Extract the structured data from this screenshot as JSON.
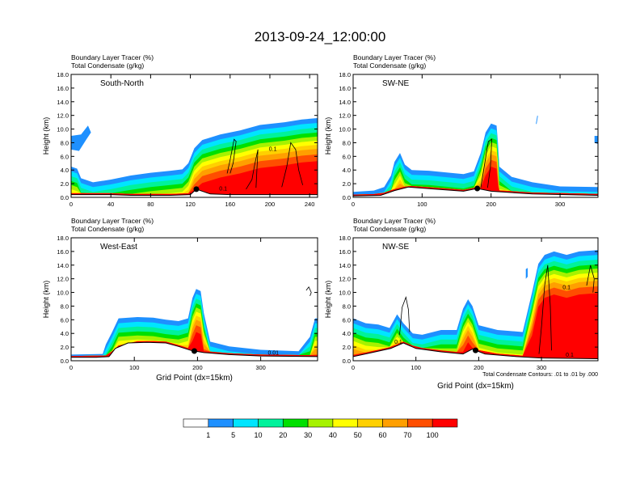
{
  "title": "2013-09-24_12:00:00",
  "chart_data": [
    {
      "type": "heatmap",
      "panel": "South-North",
      "field_label": "Boundary Layer Tracer",
      "field_units": "(%)",
      "contour_label": "Total Condensate",
      "contour_units": "(g/kg)",
      "ylabel": "Height (km)",
      "xlabel": "",
      "ylim": [
        0,
        18
      ],
      "xlim": [
        0,
        248
      ],
      "xticks": [
        "0",
        "40",
        "80",
        "120",
        "160",
        "200",
        "240"
      ],
      "marker_x": 126,
      "terrain": [
        [
          0,
          0.4
        ],
        [
          20,
          0.4
        ],
        [
          40,
          0.4
        ],
        [
          60,
          0.3
        ],
        [
          80,
          0.3
        ],
        [
          100,
          0.3
        ],
        [
          120,
          0.4
        ],
        [
          126,
          1.2
        ],
        [
          140,
          0.5
        ],
        [
          160,
          0.4
        ],
        [
          200,
          0.4
        ],
        [
          248,
          0.4
        ]
      ],
      "plume": [
        [
          0,
          0
        ],
        [
          0,
          4.5
        ],
        [
          6,
          4.2
        ],
        [
          10,
          2.8
        ],
        [
          22,
          2.2
        ],
        [
          40,
          2.6
        ],
        [
          60,
          3.2
        ],
        [
          80,
          3.6
        ],
        [
          100,
          3.9
        ],
        [
          112,
          4.1
        ],
        [
          118,
          5
        ],
        [
          124,
          7.2
        ],
        [
          132,
          8.4
        ],
        [
          150,
          9.2
        ],
        [
          170,
          9.8
        ],
        [
          190,
          10.6
        ],
        [
          215,
          11.0
        ],
        [
          232,
          11.4
        ],
        [
          248,
          11.6
        ],
        [
          248,
          0
        ]
      ],
      "contours": [
        [
          [
            157,
            3.5
          ],
          [
            160,
            5.5
          ],
          [
            164,
            8.5
          ],
          [
            166,
            8.2
          ],
          [
            163,
            5
          ],
          [
            160,
            3.5
          ]
        ],
        [
          [
            176,
            1.2
          ],
          [
            182,
            2.6
          ],
          [
            185,
            5
          ],
          [
            188,
            7
          ],
          [
            186,
            1.4
          ]
        ],
        [
          [
            212,
            1.5
          ],
          [
            217,
            4.5
          ],
          [
            221,
            8
          ],
          [
            226,
            7
          ],
          [
            229,
            4
          ],
          [
            233,
            1.8
          ]
        ]
      ],
      "contour_labels": [
        {
          "x": 153,
          "y": 1.0,
          "text": "0.1"
        },
        {
          "x": 203,
          "y": 6.8,
          "text": "0.1"
        }
      ],
      "blobs": [
        [
          [
            0,
            7
          ],
          [
            8,
            6.8
          ],
          [
            15,
            8.4
          ],
          [
            20,
            9.5
          ],
          [
            17,
            10.5
          ],
          [
            10,
            9.2
          ],
          [
            0,
            9
          ]
        ]
      ]
    },
    {
      "type": "heatmap",
      "panel": "SW-NE",
      "field_label": "Boundary Layer Tracer",
      "field_units": "(%)",
      "contour_label": "Total Condensate",
      "contour_units": "(g/kg)",
      "ylabel": "Height (km)",
      "xlabel": "",
      "ylim": [
        0,
        18
      ],
      "xlim": [
        0,
        355
      ],
      "xticks": [
        "0",
        "100",
        "200",
        "300"
      ],
      "marker_x": 180,
      "terrain": [
        [
          0,
          0.2
        ],
        [
          40,
          0.3
        ],
        [
          60,
          1.0
        ],
        [
          80,
          1.5
        ],
        [
          120,
          1.2
        ],
        [
          160,
          0.9
        ],
        [
          180,
          1.3
        ],
        [
          200,
          0.9
        ],
        [
          260,
          0.5
        ],
        [
          355,
          0.3
        ]
      ],
      "plume": [
        [
          0,
          0
        ],
        [
          0,
          0.8
        ],
        [
          30,
          1.0
        ],
        [
          45,
          1.5
        ],
        [
          55,
          3.2
        ],
        [
          60,
          5.2
        ],
        [
          68,
          6.5
        ],
        [
          75,
          4.8
        ],
        [
          85,
          4.0
        ],
        [
          110,
          3.9
        ],
        [
          140,
          3.6
        ],
        [
          160,
          3.4
        ],
        [
          175,
          3.8
        ],
        [
          185,
          6.5
        ],
        [
          192,
          9.5
        ],
        [
          200,
          10.8
        ],
        [
          208,
          10.5
        ],
        [
          210,
          8
        ],
        [
          212,
          4.5
        ],
        [
          230,
          3
        ],
        [
          260,
          2.2
        ],
        [
          300,
          1.6
        ],
        [
          355,
          1.5
        ],
        [
          355,
          0
        ]
      ],
      "contours": [
        [
          [
            185,
            1.4
          ],
          [
            190,
            4.5
          ],
          [
            196,
            8.2
          ],
          [
            201,
            8.5
          ],
          [
            199,
            4.5
          ],
          [
            195,
            1.4
          ]
        ]
      ],
      "contour_labels": [],
      "blobs": [
        [
          [
            350,
            8
          ],
          [
            355,
            7.8
          ],
          [
            355,
            9
          ],
          [
            350,
            9
          ]
        ],
        [
          [
            265,
            10.8
          ],
          [
            267,
            12
          ],
          [
            268,
            11.9
          ],
          [
            266,
            10.7
          ]
        ]
      ]
    },
    {
      "type": "heatmap",
      "panel": "West-East",
      "field_label": "Boundary Layer Tracer",
      "field_units": "(%)",
      "contour_label": "Total Condensate",
      "contour_units": "(g/kg)",
      "ylabel": "Height (km)",
      "xlabel": "Grid Point (dx=15km)",
      "ylim": [
        0,
        18
      ],
      "xlim": [
        0,
        390
      ],
      "xticks": [
        "0",
        "100",
        "200",
        "300"
      ],
      "marker_x": 195,
      "terrain": [
        [
          0,
          0.5
        ],
        [
          40,
          0.5
        ],
        [
          60,
          0.6
        ],
        [
          70,
          1.8
        ],
        [
          90,
          2.6
        ],
        [
          120,
          2.7
        ],
        [
          150,
          2.6
        ],
        [
          170,
          2.1
        ],
        [
          190,
          1.5
        ],
        [
          210,
          1.2
        ],
        [
          250,
          0.9
        ],
        [
          300,
          0.7
        ],
        [
          390,
          0.6
        ]
      ],
      "plume": [
        [
          0,
          0
        ],
        [
          0,
          0.9
        ],
        [
          50,
          1.0
        ],
        [
          55,
          2.4
        ],
        [
          65,
          4.2
        ],
        [
          75,
          6.2
        ],
        [
          105,
          6.4
        ],
        [
          130,
          6.3
        ],
        [
          150,
          6.0
        ],
        [
          170,
          5.8
        ],
        [
          185,
          6.2
        ],
        [
          192,
          9.2
        ],
        [
          198,
          10.5
        ],
        [
          205,
          10.2
        ],
        [
          210,
          7
        ],
        [
          220,
          2.8
        ],
        [
          250,
          2.1
        ],
        [
          300,
          1.6
        ],
        [
          360,
          1.4
        ],
        [
          378,
          3.5
        ],
        [
          386,
          6.2
        ],
        [
          390,
          6.2
        ],
        [
          390,
          0
        ]
      ],
      "contours": [
        [
          [
            372,
            10.3
          ],
          [
            376,
            10.8
          ],
          [
            380,
            10
          ],
          [
            378,
            9.5
          ]
        ]
      ],
      "contour_labels": [
        {
          "x": 320,
          "y": 0.9,
          "text": "0.01"
        }
      ],
      "blobs": []
    },
    {
      "type": "heatmap",
      "panel": "NW-SE",
      "field_label": "Boundary Layer Tracer",
      "field_units": "(%)",
      "contour_label": "Total Condensate",
      "contour_units": "(g/kg)",
      "ylabel": "Height (km)",
      "xlabel": "Grid Point (dx=15km)",
      "ylim": [
        0,
        18
      ],
      "xlim": [
        0,
        390
      ],
      "xticks": [
        "0",
        "100",
        "200",
        "300"
      ],
      "marker_x": 195,
      "terrain": [
        [
          0,
          0.6
        ],
        [
          30,
          1.2
        ],
        [
          60,
          1.8
        ],
        [
          80,
          2.6
        ],
        [
          100,
          1.8
        ],
        [
          140,
          1.3
        ],
        [
          175,
          1.0
        ],
        [
          190,
          1.7
        ],
        [
          210,
          1.0
        ],
        [
          260,
          0.6
        ],
        [
          300,
          0.4
        ],
        [
          390,
          0.3
        ]
      ],
      "plume": [
        [
          0,
          0
        ],
        [
          0,
          6.2
        ],
        [
          20,
          5.5
        ],
        [
          40,
          5.3
        ],
        [
          58,
          4.8
        ],
        [
          70,
          6.8
        ],
        [
          80,
          5.5
        ],
        [
          95,
          4.0
        ],
        [
          110,
          3.8
        ],
        [
          140,
          4.5
        ],
        [
          165,
          4.5
        ],
        [
          175,
          7.6
        ],
        [
          183,
          9.0
        ],
        [
          190,
          8.0
        ],
        [
          200,
          5.2
        ],
        [
          230,
          4.5
        ],
        [
          270,
          4.2
        ],
        [
          285,
          10
        ],
        [
          295,
          14.2
        ],
        [
          305,
          15.5
        ],
        [
          320,
          16
        ],
        [
          340,
          15.5
        ],
        [
          360,
          16
        ],
        [
          390,
          16.2
        ],
        [
          390,
          0
        ]
      ],
      "contours": [
        [
          [
            74,
            3.8
          ],
          [
            78,
            7.8
          ],
          [
            84,
            9.3
          ],
          [
            88,
            7.5
          ],
          [
            90,
            4.2
          ]
        ],
        [
          [
            296,
            1
          ],
          [
            300,
            5
          ],
          [
            305,
            11
          ],
          [
            310,
            14
          ],
          [
            314,
            8
          ],
          [
            316,
            1.5
          ]
        ],
        [
          [
            372,
            11
          ],
          [
            378,
            14
          ],
          [
            384,
            12
          ],
          [
            382,
            10
          ]
        ]
      ],
      "contour_labels": [
        {
          "x": 72,
          "y": 2.5,
          "text": "0.1"
        },
        {
          "x": 340,
          "y": 10.5,
          "text": "0.1"
        },
        {
          "x": 345,
          "y": 0.6,
          "text": "0.1"
        }
      ],
      "blobs": [
        [
          [
            275,
            12
          ],
          [
            278,
            12.3
          ],
          [
            278,
            13.6
          ],
          [
            275,
            13.4
          ]
        ]
      ],
      "footnote": "Total Condensate Contours: .01 to .01 by .000"
    }
  ],
  "legend": {
    "labels": [
      "1",
      "5",
      "10",
      "20",
      "30",
      "40",
      "50",
      "60",
      "70",
      "100"
    ],
    "colors": [
      "#ffffff",
      "#1e90ff",
      "#00e5ff",
      "#00f29b",
      "#00e000",
      "#a6f200",
      "#ffff00",
      "#ffd000",
      "#ff9f00",
      "#ff4e00",
      "#ff0000"
    ]
  }
}
